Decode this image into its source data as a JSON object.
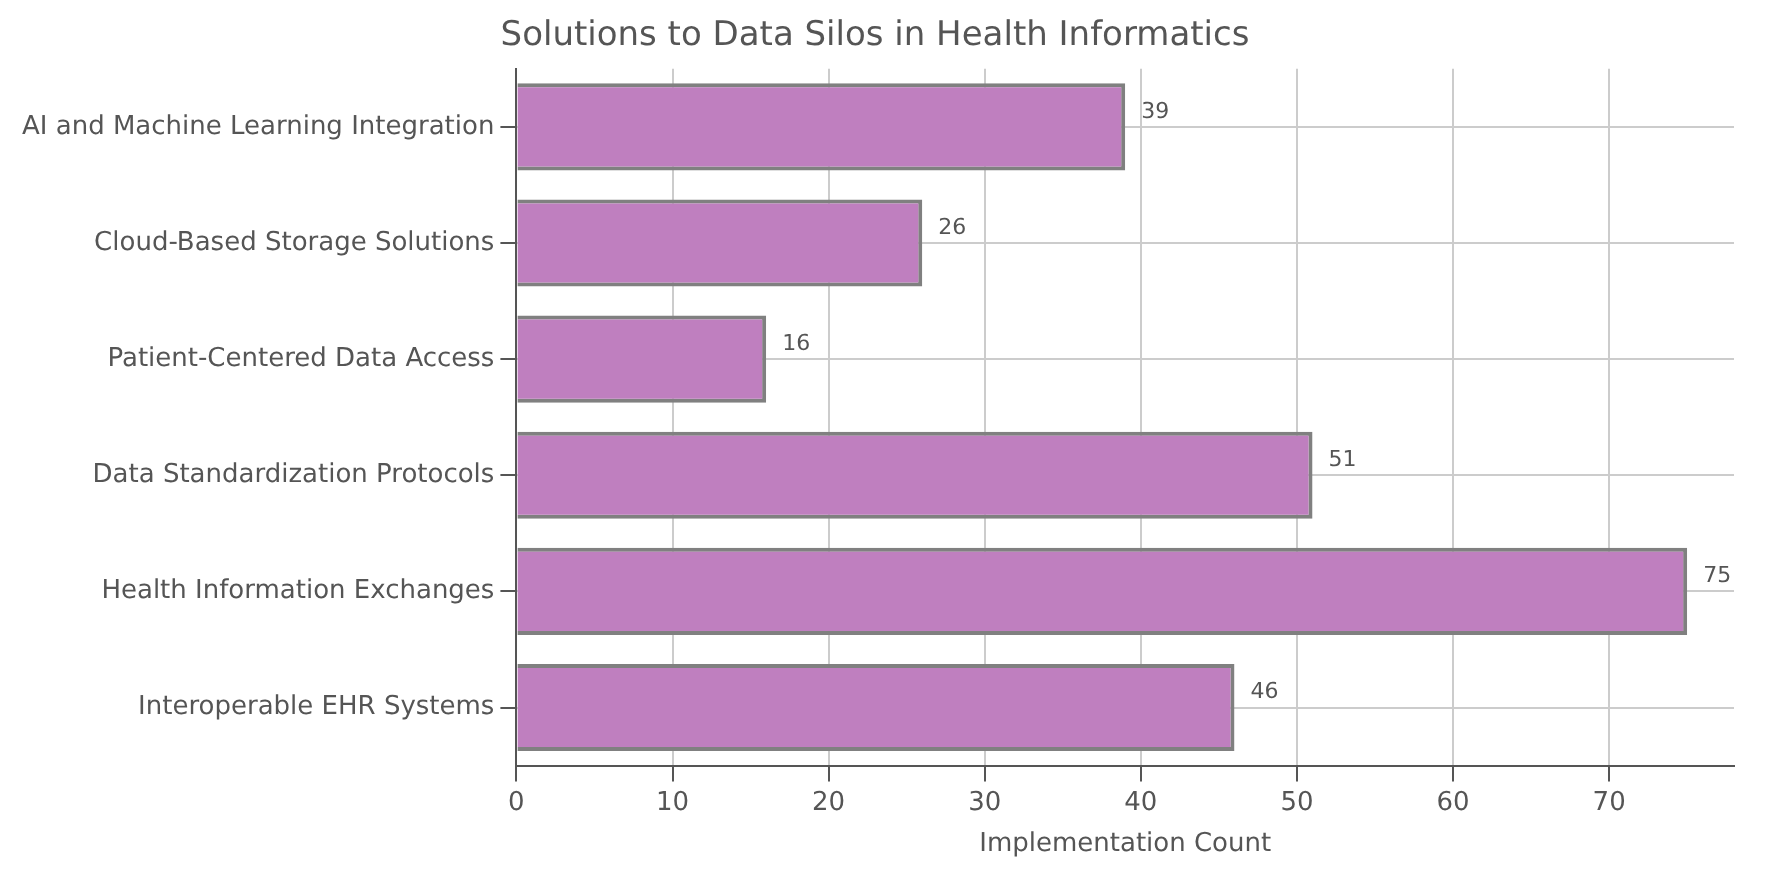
{
  "chart_data": {
    "type": "bar",
    "orientation": "horizontal",
    "title": "Solutions to Data Silos in Health Informatics",
    "xlabel": "Implementation Count",
    "categories": [
      "AI and Machine Learning Integration",
      "Cloud-Based Storage Solutions",
      "Patient-Centered Data Access",
      "Data Standardization Protocols",
      "Health Information Exchanges",
      "Interoperable EHR Systems"
    ],
    "values": [
      39,
      26,
      16,
      51,
      75,
      46
    ],
    "color": "#bf7fbf",
    "xlim": [
      0,
      78
    ],
    "xticks": [
      0,
      10,
      20,
      30,
      40,
      50,
      60,
      70
    ],
    "grid": true,
    "data_labels": true,
    "legend": false
  }
}
